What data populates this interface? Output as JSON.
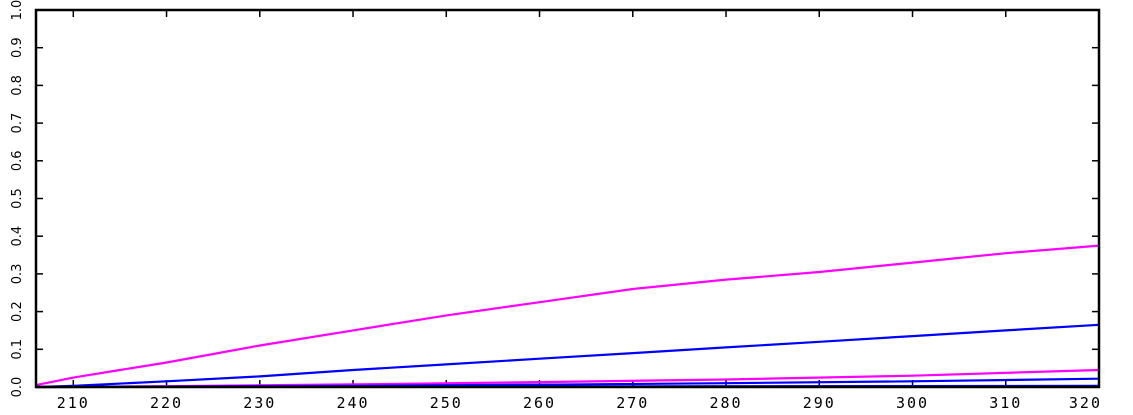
{
  "chart_data": {
    "type": "line",
    "title": "",
    "xlabel": "",
    "ylabel": "",
    "xlim": [
      206,
      320
    ],
    "ylim": [
      0,
      1
    ],
    "x_ticks": [
      210,
      220,
      230,
      240,
      250,
      260,
      270,
      280,
      290,
      300,
      310,
      320
    ],
    "x_tick_labels": [
      "210",
      "220",
      "230",
      "240",
      "250",
      "260",
      "270",
      "280",
      "290",
      "300",
      "310",
      "320"
    ],
    "y_ticks": [
      0,
      0.1,
      0.2,
      0.3,
      0.4,
      0.5,
      0.6,
      0.7,
      0.8,
      0.9,
      1.0
    ],
    "y_tick_labels": [
      "0.0",
      "0.1",
      "0.2",
      "0.3",
      "0.4",
      "0.5",
      "0.6",
      "0.7",
      "0.8",
      "0.9",
      "1.0"
    ],
    "grid": false,
    "legend": "none",
    "series": [
      {
        "color": "#ff00ff",
        "x": [
          206,
          210,
          215,
          220,
          230,
          240,
          250,
          260,
          270,
          280,
          290,
          300,
          310,
          320
        ],
        "y": [
          0.005,
          0.025,
          0.045,
          0.065,
          0.11,
          0.15,
          0.19,
          0.225,
          0.26,
          0.285,
          0.305,
          0.33,
          0.355,
          0.375
        ]
      },
      {
        "color": "#0000ff",
        "x": [
          206,
          210,
          220,
          230,
          240,
          250,
          260,
          270,
          280,
          290,
          300,
          310,
          320
        ],
        "y": [
          0.0,
          0.003,
          0.015,
          0.028,
          0.045,
          0.06,
          0.075,
          0.09,
          0.105,
          0.12,
          0.135,
          0.15,
          0.165
        ]
      },
      {
        "color": "#ff00ff",
        "x": [
          206,
          220,
          240,
          260,
          280,
          300,
          320
        ],
        "y": [
          0.0,
          0.002,
          0.007,
          0.013,
          0.02,
          0.03,
          0.045
        ]
      },
      {
        "color": "#0000ff",
        "x": [
          206,
          220,
          240,
          260,
          280,
          300,
          320
        ],
        "y": [
          0.0,
          0.001,
          0.003,
          0.006,
          0.01,
          0.015,
          0.022
        ]
      },
      {
        "color": "#0000ff",
        "x": [
          206,
          250,
          320
        ],
        "y": [
          0.0,
          0.001,
          0.003
        ]
      }
    ]
  }
}
